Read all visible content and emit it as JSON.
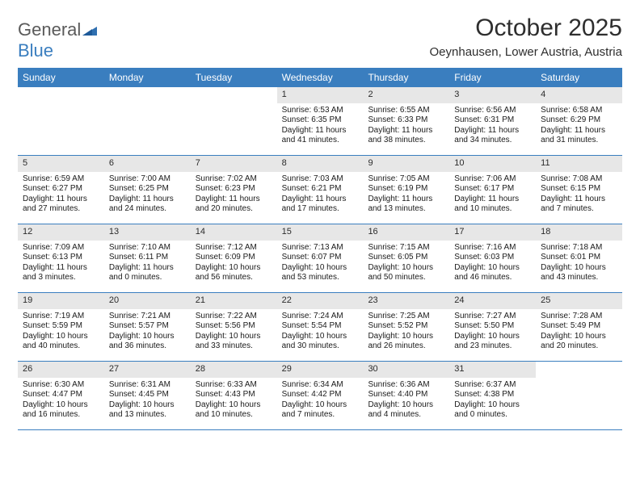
{
  "brand": {
    "general": "General",
    "blue": "Blue"
  },
  "title": "October 2025",
  "location": "Oeynhausen, Lower Austria, Austria",
  "colors": {
    "header_bg": "#3a7ebf",
    "header_text": "#ffffff",
    "daynum_bg": "#e7e7e7",
    "border": "#3a7ebf",
    "body_text": "#1a1a1a",
    "title_text": "#2e2e2e",
    "logo_gray": "#5a5a5a",
    "logo_blue": "#3a7ebf",
    "page_bg": "#ffffff"
  },
  "font": {
    "daynum_size": 11,
    "body_size": 10,
    "weekday_size": 12,
    "title_size": 30,
    "location_size": 15
  },
  "weekdays": [
    "Sunday",
    "Monday",
    "Tuesday",
    "Wednesday",
    "Thursday",
    "Friday",
    "Saturday"
  ],
  "weeks": [
    [
      {
        "n": "",
        "sr": "",
        "ss": "",
        "dl1": "",
        "dl2": ""
      },
      {
        "n": "",
        "sr": "",
        "ss": "",
        "dl1": "",
        "dl2": ""
      },
      {
        "n": "",
        "sr": "",
        "ss": "",
        "dl1": "",
        "dl2": ""
      },
      {
        "n": "1",
        "sr": "Sunrise: 6:53 AM",
        "ss": "Sunset: 6:35 PM",
        "dl1": "Daylight: 11 hours",
        "dl2": "and 41 minutes."
      },
      {
        "n": "2",
        "sr": "Sunrise: 6:55 AM",
        "ss": "Sunset: 6:33 PM",
        "dl1": "Daylight: 11 hours",
        "dl2": "and 38 minutes."
      },
      {
        "n": "3",
        "sr": "Sunrise: 6:56 AM",
        "ss": "Sunset: 6:31 PM",
        "dl1": "Daylight: 11 hours",
        "dl2": "and 34 minutes."
      },
      {
        "n": "4",
        "sr": "Sunrise: 6:58 AM",
        "ss": "Sunset: 6:29 PM",
        "dl1": "Daylight: 11 hours",
        "dl2": "and 31 minutes."
      }
    ],
    [
      {
        "n": "5",
        "sr": "Sunrise: 6:59 AM",
        "ss": "Sunset: 6:27 PM",
        "dl1": "Daylight: 11 hours",
        "dl2": "and 27 minutes."
      },
      {
        "n": "6",
        "sr": "Sunrise: 7:00 AM",
        "ss": "Sunset: 6:25 PM",
        "dl1": "Daylight: 11 hours",
        "dl2": "and 24 minutes."
      },
      {
        "n": "7",
        "sr": "Sunrise: 7:02 AM",
        "ss": "Sunset: 6:23 PM",
        "dl1": "Daylight: 11 hours",
        "dl2": "and 20 minutes."
      },
      {
        "n": "8",
        "sr": "Sunrise: 7:03 AM",
        "ss": "Sunset: 6:21 PM",
        "dl1": "Daylight: 11 hours",
        "dl2": "and 17 minutes."
      },
      {
        "n": "9",
        "sr": "Sunrise: 7:05 AM",
        "ss": "Sunset: 6:19 PM",
        "dl1": "Daylight: 11 hours",
        "dl2": "and 13 minutes."
      },
      {
        "n": "10",
        "sr": "Sunrise: 7:06 AM",
        "ss": "Sunset: 6:17 PM",
        "dl1": "Daylight: 11 hours",
        "dl2": "and 10 minutes."
      },
      {
        "n": "11",
        "sr": "Sunrise: 7:08 AM",
        "ss": "Sunset: 6:15 PM",
        "dl1": "Daylight: 11 hours",
        "dl2": "and 7 minutes."
      }
    ],
    [
      {
        "n": "12",
        "sr": "Sunrise: 7:09 AM",
        "ss": "Sunset: 6:13 PM",
        "dl1": "Daylight: 11 hours",
        "dl2": "and 3 minutes."
      },
      {
        "n": "13",
        "sr": "Sunrise: 7:10 AM",
        "ss": "Sunset: 6:11 PM",
        "dl1": "Daylight: 11 hours",
        "dl2": "and 0 minutes."
      },
      {
        "n": "14",
        "sr": "Sunrise: 7:12 AM",
        "ss": "Sunset: 6:09 PM",
        "dl1": "Daylight: 10 hours",
        "dl2": "and 56 minutes."
      },
      {
        "n": "15",
        "sr": "Sunrise: 7:13 AM",
        "ss": "Sunset: 6:07 PM",
        "dl1": "Daylight: 10 hours",
        "dl2": "and 53 minutes."
      },
      {
        "n": "16",
        "sr": "Sunrise: 7:15 AM",
        "ss": "Sunset: 6:05 PM",
        "dl1": "Daylight: 10 hours",
        "dl2": "and 50 minutes."
      },
      {
        "n": "17",
        "sr": "Sunrise: 7:16 AM",
        "ss": "Sunset: 6:03 PM",
        "dl1": "Daylight: 10 hours",
        "dl2": "and 46 minutes."
      },
      {
        "n": "18",
        "sr": "Sunrise: 7:18 AM",
        "ss": "Sunset: 6:01 PM",
        "dl1": "Daylight: 10 hours",
        "dl2": "and 43 minutes."
      }
    ],
    [
      {
        "n": "19",
        "sr": "Sunrise: 7:19 AM",
        "ss": "Sunset: 5:59 PM",
        "dl1": "Daylight: 10 hours",
        "dl2": "and 40 minutes."
      },
      {
        "n": "20",
        "sr": "Sunrise: 7:21 AM",
        "ss": "Sunset: 5:57 PM",
        "dl1": "Daylight: 10 hours",
        "dl2": "and 36 minutes."
      },
      {
        "n": "21",
        "sr": "Sunrise: 7:22 AM",
        "ss": "Sunset: 5:56 PM",
        "dl1": "Daylight: 10 hours",
        "dl2": "and 33 minutes."
      },
      {
        "n": "22",
        "sr": "Sunrise: 7:24 AM",
        "ss": "Sunset: 5:54 PM",
        "dl1": "Daylight: 10 hours",
        "dl2": "and 30 minutes."
      },
      {
        "n": "23",
        "sr": "Sunrise: 7:25 AM",
        "ss": "Sunset: 5:52 PM",
        "dl1": "Daylight: 10 hours",
        "dl2": "and 26 minutes."
      },
      {
        "n": "24",
        "sr": "Sunrise: 7:27 AM",
        "ss": "Sunset: 5:50 PM",
        "dl1": "Daylight: 10 hours",
        "dl2": "and 23 minutes."
      },
      {
        "n": "25",
        "sr": "Sunrise: 7:28 AM",
        "ss": "Sunset: 5:49 PM",
        "dl1": "Daylight: 10 hours",
        "dl2": "and 20 minutes."
      }
    ],
    [
      {
        "n": "26",
        "sr": "Sunrise: 6:30 AM",
        "ss": "Sunset: 4:47 PM",
        "dl1": "Daylight: 10 hours",
        "dl2": "and 16 minutes."
      },
      {
        "n": "27",
        "sr": "Sunrise: 6:31 AM",
        "ss": "Sunset: 4:45 PM",
        "dl1": "Daylight: 10 hours",
        "dl2": "and 13 minutes."
      },
      {
        "n": "28",
        "sr": "Sunrise: 6:33 AM",
        "ss": "Sunset: 4:43 PM",
        "dl1": "Daylight: 10 hours",
        "dl2": "and 10 minutes."
      },
      {
        "n": "29",
        "sr": "Sunrise: 6:34 AM",
        "ss": "Sunset: 4:42 PM",
        "dl1": "Daylight: 10 hours",
        "dl2": "and 7 minutes."
      },
      {
        "n": "30",
        "sr": "Sunrise: 6:36 AM",
        "ss": "Sunset: 4:40 PM",
        "dl1": "Daylight: 10 hours",
        "dl2": "and 4 minutes."
      },
      {
        "n": "31",
        "sr": "Sunrise: 6:37 AM",
        "ss": "Sunset: 4:38 PM",
        "dl1": "Daylight: 10 hours",
        "dl2": "and 0 minutes."
      },
      {
        "n": "",
        "sr": "",
        "ss": "",
        "dl1": "",
        "dl2": ""
      }
    ]
  ]
}
